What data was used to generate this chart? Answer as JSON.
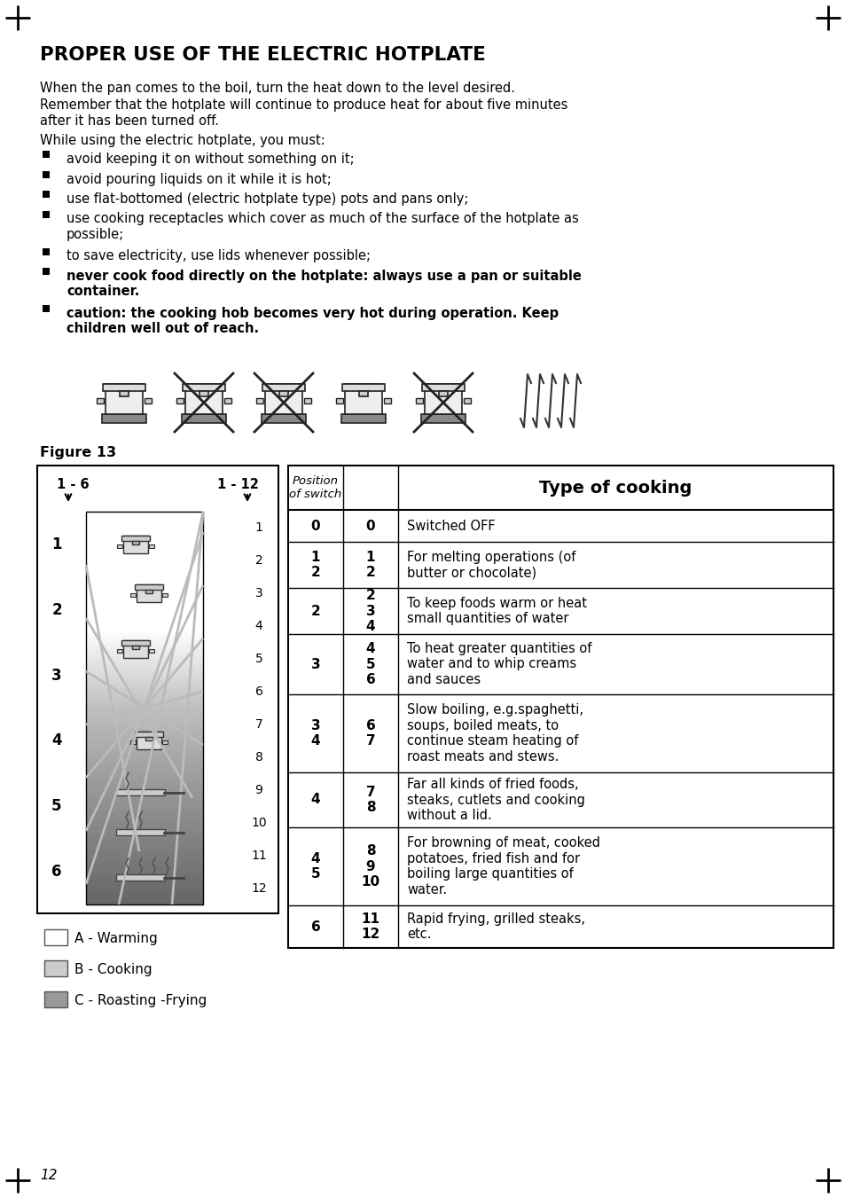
{
  "title": "PROPER USE OF THE ELECTRIC HOTPLATE",
  "intro_lines": [
    "When the pan comes to the boil, turn the heat down to the level desired.",
    "Remember that the hotplate will continue to produce heat for about five minutes\nafter it has been turned off.",
    "While using the electric hotplate, you must:"
  ],
  "bullets_normal": [
    "avoid keeping it on without something on it;",
    "avoid pouring liquids on it while it is hot;",
    "use flat-bottomed (electric hotplate type) pots and pans only;",
    "use cooking receptacles which cover as much of the surface of the hotplate as\npossible;",
    "to save electricity, use lids whenever possible;"
  ],
  "bullets_bold": [
    "never cook food directly on the hotplate: always use a pan or suitable\ncontainer.",
    "caution: the cooking hob becomes very hot during operation. Keep\nchildren well out of reach."
  ],
  "figure_label": "Figure 13",
  "legend_items": [
    "A - Warming",
    "B - Cooking",
    "C - Roasting -Frying"
  ],
  "legend_colors": [
    "#ffffff",
    "#cccccc",
    "#999999"
  ],
  "table_header_col1": "Position\nof switch",
  "table_header_col2": "Type of cooking",
  "table_rows": [
    {
      "col1": "0",
      "col2": "0",
      "col3": "Switched OFF"
    },
    {
      "col1": "1\n2",
      "col2": "1\n2",
      "col3": "For melting operations (of\nbutter or chocolate)"
    },
    {
      "col1": "2",
      "col2": "2\n3\n4",
      "col3": "To keep foods warm or heat\nsmall quantities of water"
    },
    {
      "col1": "3",
      "col2": "4\n5\n6",
      "col3": "To heat greater quantities of\nwater and to whip creams\nand sauces"
    },
    {
      "col1": "3\n4",
      "col2": "6\n7",
      "col3": "Slow boiling, e.g.spaghetti,\nsoups, boiled meats, to\ncontinue steam heating of\nroast meats and stews."
    },
    {
      "col1": "4",
      "col2": "7\n8",
      "col3": "Far all kinds of fried foods,\nsteaks, cutlets and cooking\nwithout a lid."
    },
    {
      "col1": "4\n5",
      "col2": "8\n9\n10",
      "col3": "For browning of meat, cooked\npotatoes, fried fish and for\nboiling large quantities of\nwater."
    },
    {
      "col1": "6",
      "col2": "11\n12",
      "col3": "Rapid frying, grilled steaks,\netc."
    }
  ],
  "page_number": "12",
  "bg_color": "#ffffff",
  "text_color": "#000000"
}
